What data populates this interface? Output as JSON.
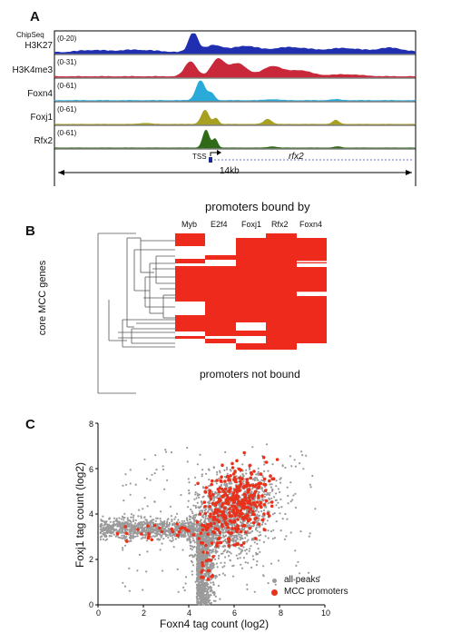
{
  "panelA": {
    "panel_label": "A",
    "chipseq_label": "ChipSeq",
    "tracks": [
      {
        "name": "H3K27",
        "scale": "(0-20)",
        "color": "#1f2fb0"
      },
      {
        "name": "H3K4me3",
        "scale": "(0-31)",
        "color": "#c8283a"
      },
      {
        "name": "Foxn4",
        "scale": "(0-61)",
        "color": "#2aaad8"
      },
      {
        "name": "Foxj1",
        "scale": "(0-61)",
        "color": "#a8a020"
      },
      {
        "name": "Rfx2",
        "scale": "(0-61)",
        "color": "#2f6a18"
      }
    ],
    "tss_label": "TSS",
    "gene_label": "rfx2",
    "length_label": "14kb"
  },
  "panelB": {
    "panel_label": "B",
    "title": "promoters bound by",
    "columns": [
      "Myb",
      "E2f4",
      "Foxj1",
      "Rfx2",
      "Foxn4"
    ],
    "row_label": "core MCC genes",
    "bottom_label": "promoters not bound",
    "fill_color": "#ee2a1c"
  },
  "panelC": {
    "panel_label": "C",
    "chart_data": {
      "type": "scatter",
      "xlabel": "Foxn4 tag count (log2)",
      "ylabel": "Foxj1 tag count (log2)",
      "xlim": [
        0,
        10
      ],
      "ylim": [
        0,
        8
      ],
      "xticks": [
        "0",
        "2",
        "4",
        "6",
        "8",
        "10"
      ],
      "yticks": [
        "0",
        "2",
        "4",
        "6",
        "8"
      ],
      "legend_position": "bottom-right",
      "series": [
        {
          "name": "all peaks",
          "color": "#9a9a9a"
        },
        {
          "name": "MCC promoters",
          "color": "#e8321c"
        }
      ]
    }
  }
}
